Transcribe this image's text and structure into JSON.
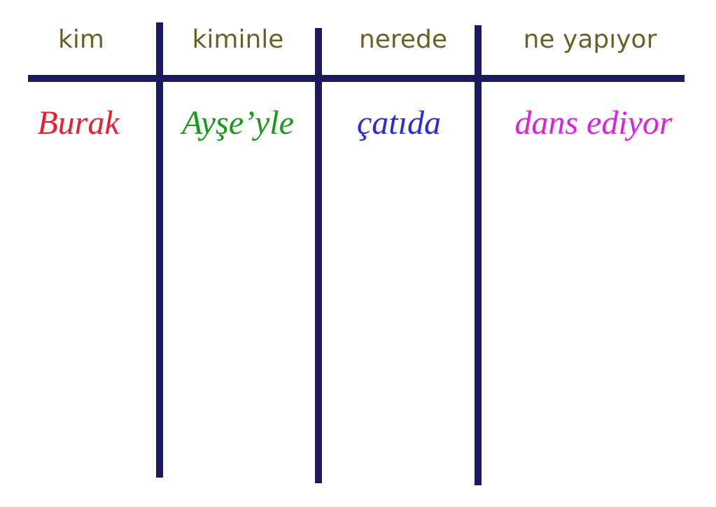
{
  "table": {
    "header": [
      "kim",
      "kiminle",
      "nerede",
      "ne yapıyor"
    ],
    "rows": [
      [
        "Burak",
        "Ayşe’yle",
        "çatıda",
        "dans ediyor"
      ]
    ]
  }
}
